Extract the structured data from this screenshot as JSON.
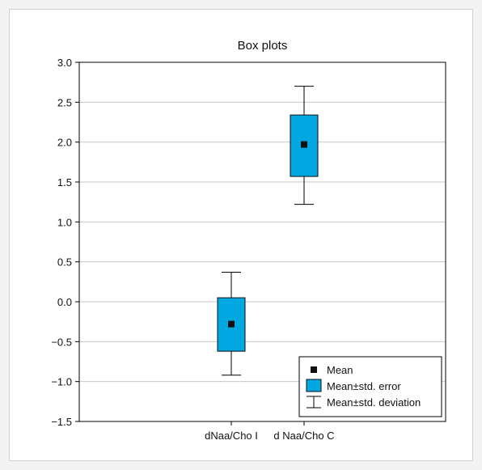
{
  "chart_data": {
    "type": "box",
    "title": "Box plots",
    "xlabel": "",
    "ylabel": "",
    "ylim": [
      -1.5,
      3.0
    ],
    "yticks": [
      3.0,
      2.5,
      2.0,
      1.5,
      1.0,
      0.5,
      0.0,
      -0.5,
      -1.0,
      -1.5
    ],
    "ytick_labels": [
      "3.0",
      "2.5",
      "2.0",
      "1.5",
      "1.0",
      "0.5",
      "0.0",
      "−0.5",
      "−1.0",
      "−1.5"
    ],
    "grid": true,
    "categories": [
      "dNaa/Cho I",
      "d Naa/Cho C"
    ],
    "series": [
      {
        "category": "dNaa/Cho I",
        "mean": -0.28,
        "se_low": -0.62,
        "se_high": 0.05,
        "sd_low": -0.92,
        "sd_high": 0.37
      },
      {
        "category": "d Naa/Cho C",
        "mean": 1.97,
        "se_low": 1.57,
        "se_high": 2.34,
        "sd_low": 1.22,
        "sd_high": 2.7
      }
    ],
    "colors": {
      "box_fill": "#00a7e1",
      "box_edge": "#111111",
      "grid": "#c8c8c8",
      "mean_marker": "#111111"
    },
    "legend": {
      "position": "bottom-right",
      "items": [
        {
          "label": "Mean",
          "icon": "square-marker-icon"
        },
        {
          "label": "Mean±std. error",
          "icon": "filled-box-icon"
        },
        {
          "label": "Mean±std. deviation",
          "icon": "whisker-icon"
        }
      ]
    }
  }
}
